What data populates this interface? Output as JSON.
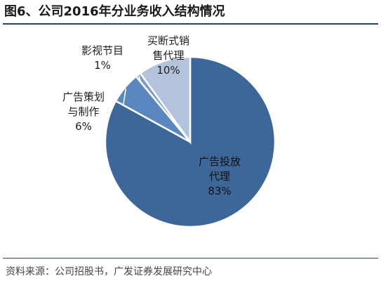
{
  "title": "图6、公司2016年分业务收入结构情况",
  "source": "资料来源：公司招股书，广发证券发展研究中心",
  "chart_data": {
    "type": "pie",
    "slices": [
      {
        "label_lines": [
          "广告投放",
          "代理"
        ],
        "pct_label": "83%",
        "value": 83,
        "color": "#3d6699"
      },
      {
        "label_lines": [
          "广告策划",
          "与制作"
        ],
        "pct_label": "6%",
        "value": 6,
        "color": "#5a87bf"
      },
      {
        "label_lines": [
          "影视节目"
        ],
        "pct_label": "1%",
        "value": 1,
        "color": "#7a9cc8"
      },
      {
        "label_lines": [
          "买断式销",
          "售代理"
        ],
        "pct_label": "10%",
        "value": 10,
        "color": "#b4c3dc"
      }
    ]
  }
}
